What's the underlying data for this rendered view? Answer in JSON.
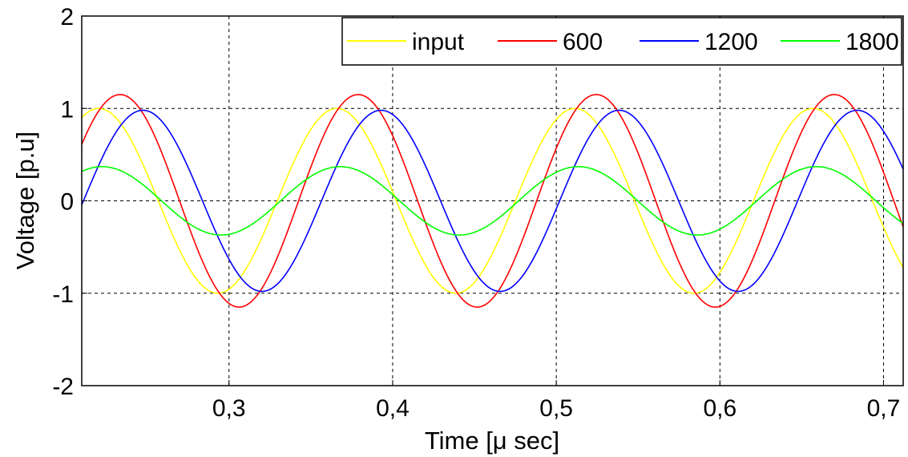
{
  "chart_data": {
    "type": "line",
    "title": "",
    "xlabel": "Time [μ sec]",
    "ylabel": "Voltage [p.u]",
    "xlim": [
      0.21,
      0.712
    ],
    "ylim": [
      -2,
      2
    ],
    "grid": true,
    "legend_position": "top-right",
    "x_ticks": [
      0.3,
      0.4,
      0.5,
      0.6,
      0.7
    ],
    "x_tick_labels": [
      "0,3",
      "0,4",
      "0,5",
      "0,6",
      "0,7"
    ],
    "y_ticks": [
      -2,
      -1,
      0,
      1,
      2
    ],
    "y_tick_labels": [
      "-2",
      "-1",
      "0",
      "1",
      "2"
    ],
    "series": [
      {
        "name": "input",
        "color": "#ffff00",
        "amplitude": 1.0,
        "period": 0.1455,
        "peak_time": 0.2204,
        "x": [
          0.21,
          0.22,
          0.257,
          0.293,
          0.329,
          0.366,
          0.402,
          0.438,
          0.475,
          0.511,
          0.547,
          0.584,
          0.62,
          0.656,
          0.693,
          0.712
        ],
        "y": [
          0.95,
          1.0,
          0.0,
          -1.0,
          0.0,
          1.0,
          0.0,
          -1.0,
          0.0,
          1.0,
          0.0,
          -1.0,
          0.0,
          1.0,
          0.0,
          -0.7
        ]
      },
      {
        "name": "600",
        "color": "#ff0000",
        "amplitude": 1.15,
        "period": 0.1455,
        "peak_time": 0.2334,
        "x": [
          0.21,
          0.233,
          0.27,
          0.306,
          0.342,
          0.379,
          0.415,
          0.452,
          0.488,
          0.524,
          0.561,
          0.597,
          0.633,
          0.67,
          0.706,
          0.712
        ],
        "y": [
          0.73,
          1.15,
          0.0,
          -1.15,
          0.0,
          1.15,
          0.0,
          -1.15,
          0.0,
          1.15,
          0.0,
          -1.15,
          0.0,
          1.15,
          0.0,
          -0.3
        ]
      },
      {
        "name": "1200",
        "color": "#0000ff",
        "amplitude": 0.98,
        "period": 0.1455,
        "peak_time": 0.2474,
        "x": [
          0.21,
          0.247,
          0.284,
          0.32,
          0.356,
          0.393,
          0.429,
          0.466,
          0.502,
          0.538,
          0.575,
          0.611,
          0.648,
          0.684,
          0.712
        ],
        "y": [
          0.0,
          0.98,
          0.0,
          -0.98,
          0.0,
          0.98,
          0.0,
          -0.98,
          0.0,
          0.98,
          0.0,
          -0.98,
          0.0,
          0.98,
          0.35
        ]
      },
      {
        "name": "1800",
        "color": "#00ff00",
        "amplitude": 0.37,
        "period": 0.1455,
        "peak_time": 0.2224,
        "x": [
          0.21,
          0.222,
          0.259,
          0.295,
          0.331,
          0.368,
          0.404,
          0.441,
          0.477,
          0.513,
          0.55,
          0.586,
          0.622,
          0.659,
          0.695,
          0.712
        ],
        "y": [
          0.32,
          0.37,
          0.0,
          -0.37,
          0.0,
          0.37,
          0.0,
          -0.37,
          0.0,
          0.37,
          0.0,
          -0.37,
          0.0,
          0.37,
          0.0,
          -0.17
        ]
      }
    ]
  }
}
